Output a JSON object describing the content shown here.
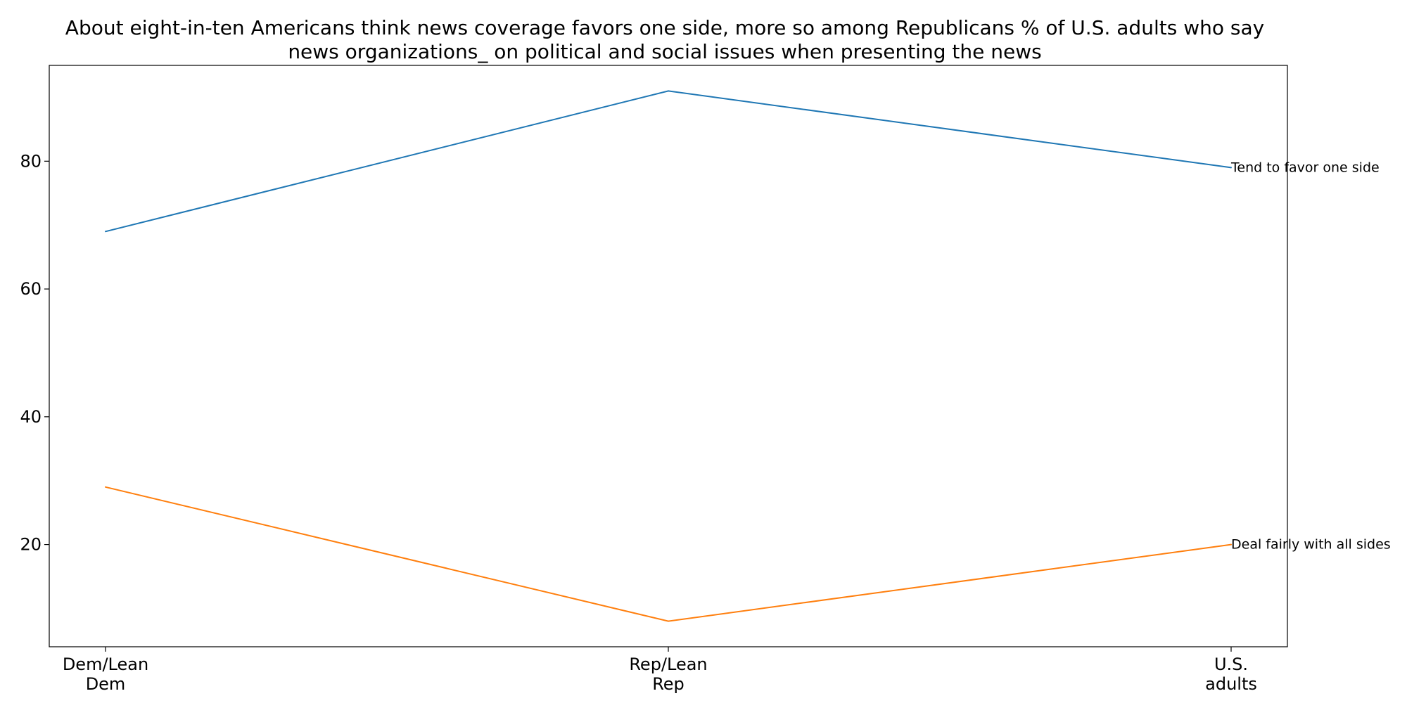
{
  "chart_data": {
    "type": "line",
    "title_lines": [
      "About eight-in-ten Americans think news coverage favors one side, more so among Republicans % of U.S. adults who say",
      "news organizations_ on political and social issues when presenting the news"
    ],
    "categories": [
      [
        "Dem/Lean",
        "Dem"
      ],
      [
        "Rep/Lean",
        "Rep"
      ],
      [
        "U.S.",
        "adults"
      ]
    ],
    "yticks": [
      20,
      40,
      60,
      80
    ],
    "ylim": [
      4,
      95
    ],
    "grid": false,
    "legend": "none",
    "series": [
      {
        "name": "Tend to favor one side",
        "values": [
          69,
          91,
          79
        ],
        "color": "#1f77b4"
      },
      {
        "name": "Deal fairly with all sides",
        "values": [
          29,
          8,
          20
        ],
        "color": "#ff7f0e"
      }
    ]
  }
}
